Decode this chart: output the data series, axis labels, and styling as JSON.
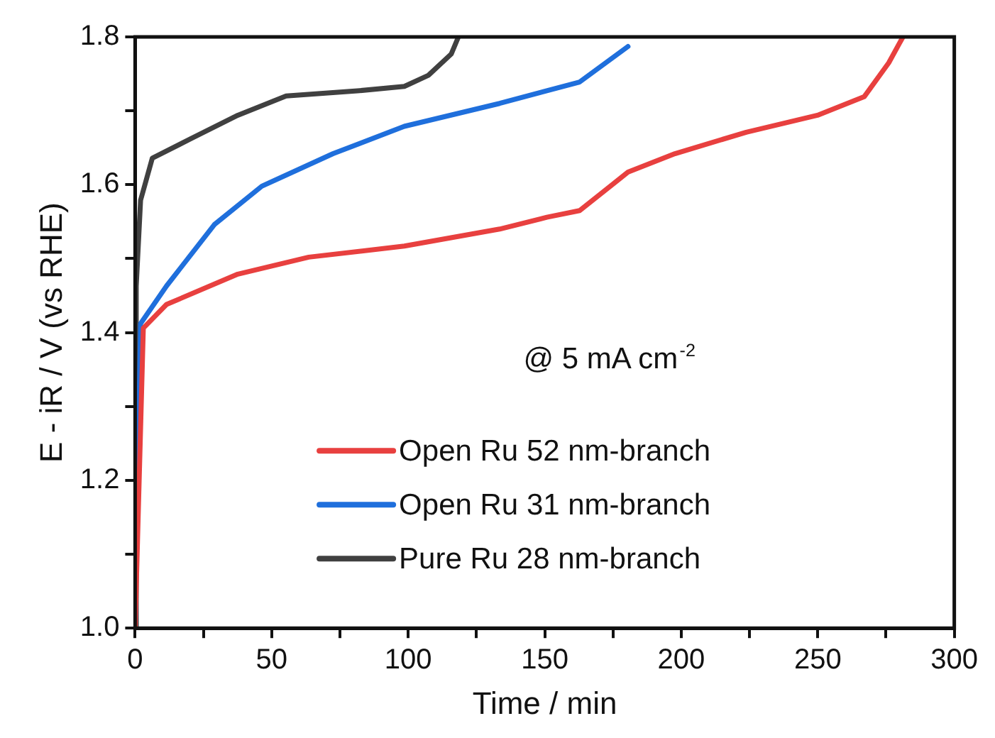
{
  "chart_data": {
    "type": "line",
    "xlabel": "Time / min",
    "ylabel": "E - iR / V (vs RHE)",
    "xlim": [
      0,
      300
    ],
    "ylim": [
      1.0,
      1.8
    ],
    "xticks": [
      0,
      {
        "value": 25,
        "label": null
      },
      50,
      {
        "value": 75,
        "label": null
      },
      100,
      {
        "value": 125,
        "label": null
      },
      150,
      {
        "value": 175,
        "label": null
      },
      200,
      {
        "value": 225,
        "label": null
      },
      250,
      {
        "value": 275,
        "label": null
      },
      300
    ],
    "yticks": [
      {
        "value": 1.0,
        "label": "1.0"
      },
      {
        "value": 1.1,
        "label": null
      },
      {
        "value": 1.2,
        "label": "1.2"
      },
      {
        "value": 1.3,
        "label": null
      },
      {
        "value": 1.4,
        "label": "1.4"
      },
      {
        "value": 1.5,
        "label": null
      },
      {
        "value": 1.6,
        "label": "1.6"
      },
      {
        "value": 1.7,
        "label": null
      },
      {
        "value": 1.8,
        "label": "1.8"
      }
    ],
    "grid": false,
    "legend": "bottom right",
    "marker": "none",
    "line_style": "solid",
    "annotations": [
      "@ 5 mA cm$^{-2}$"
    ],
    "series": [
      {
        "name": "Open Ru 52 nm-branch",
        "color": "#e8403f",
        "x": [
          0,
          3,
          11.5,
          37.6,
          63.6,
          98.6,
          133.5,
          150.8,
          162.8,
          180.5,
          197.7,
          223.8,
          249.9,
          267,
          276,
          281.2
        ],
        "values": [
          1.0,
          1.406,
          1.438,
          1.479,
          1.502,
          1.517,
          1.54,
          1.556,
          1.565,
          1.617,
          1.642,
          1.671,
          1.694,
          1.719,
          1.765,
          1.8
        ]
      },
      {
        "name": "Open Ru 31 nm-branch",
        "color": "#1f6fdc",
        "x": [
          0,
          2,
          11.5,
          29,
          46.4,
          72.5,
          98.6,
          133.5,
          162.8,
          180.5
        ],
        "values": [
          1.0,
          1.412,
          1.463,
          1.546,
          1.598,
          1.642,
          1.679,
          1.71,
          1.739,
          1.787
        ]
      },
      {
        "name": "Pure Ru 28 nm-branch",
        "color": "#404040",
        "x": [
          0,
          0.4,
          2,
          6.3,
          20.3,
          37.6,
          55.3,
          81.4,
          98.6,
          107.4,
          115.8,
          118.4
        ],
        "values": [
          1.0,
          1.463,
          1.579,
          1.636,
          1.662,
          1.694,
          1.72,
          1.727,
          1.733,
          1.748,
          1.777,
          1.8
        ]
      }
    ]
  }
}
